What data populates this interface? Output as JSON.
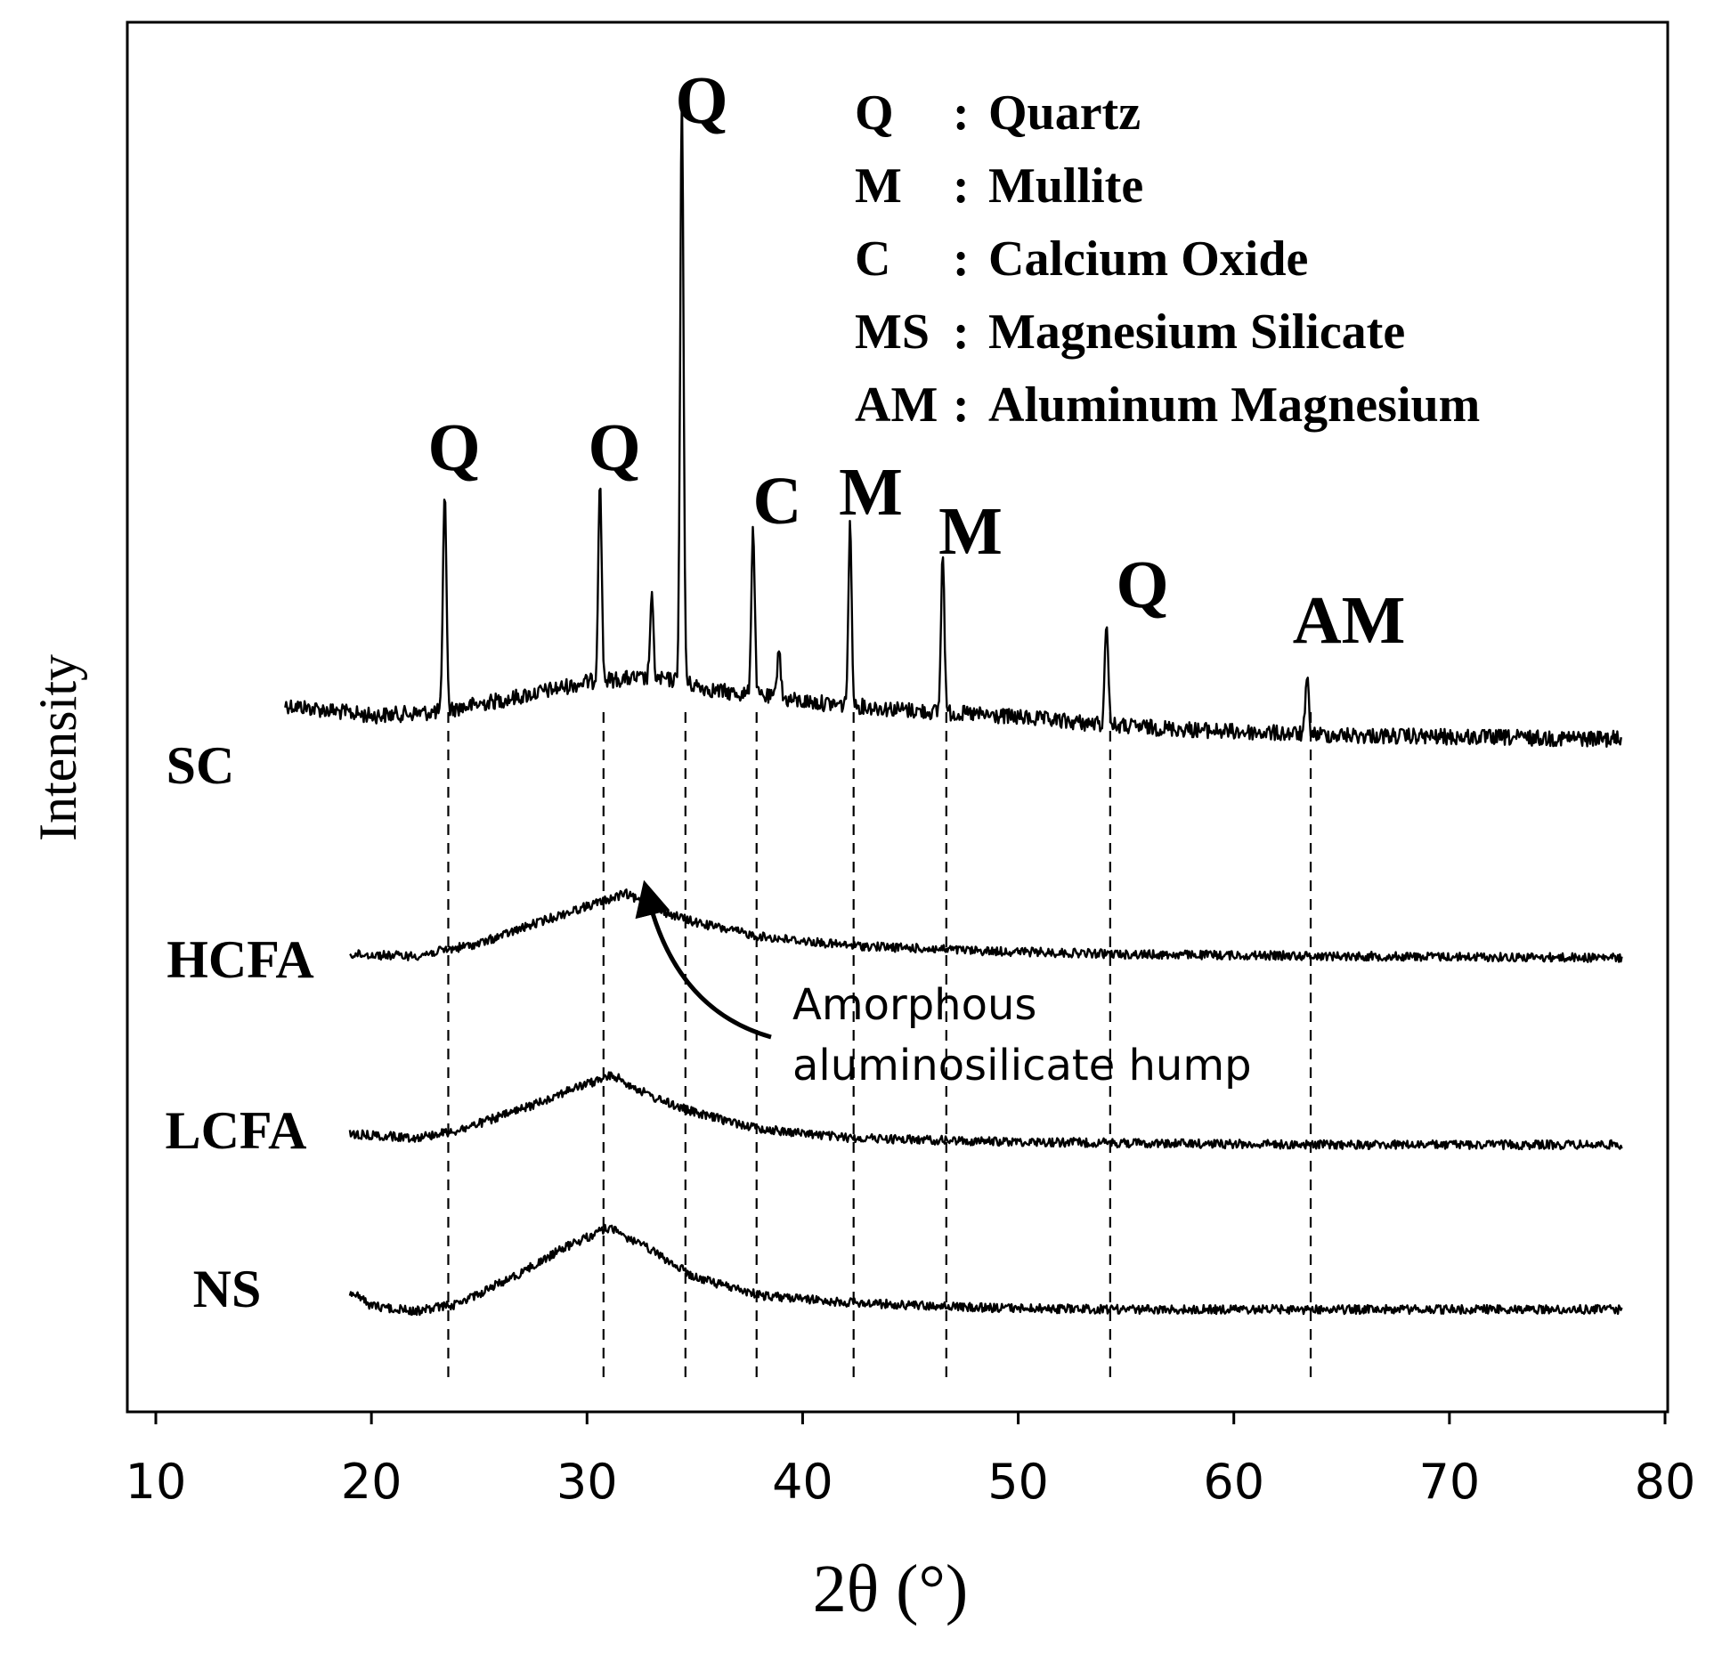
{
  "chart_data": {
    "type": "line",
    "title": "",
    "xlabel": "2θ (°)",
    "ylabel": "Intensity",
    "xlim": [
      10,
      80
    ],
    "x_ticks": [
      10,
      20,
      30,
      40,
      50,
      60,
      70,
      80
    ],
    "y_ticks": [],
    "grid": false,
    "legend": {
      "position": "top-right",
      "entries": [
        {
          "code": "Q",
          "phase": "Quartz"
        },
        {
          "code": "M",
          "phase": "Mullite"
        },
        {
          "code": "C",
          "phase": "Calcium Oxide"
        },
        {
          "code": "MS",
          "phase": "Magnesium Silicate"
        },
        {
          "code": "AM",
          "phase": "Aluminum Magnesium"
        }
      ]
    },
    "series": [
      {
        "name": "SC",
        "x_range": [
          16,
          78
        ],
        "baseline": [
          [
            16,
            0.58
          ],
          [
            20,
            0.46
          ],
          [
            23,
            0.5
          ],
          [
            27,
            0.68
          ],
          [
            30,
            0.84
          ],
          [
            32,
            0.88
          ],
          [
            34,
            0.86
          ],
          [
            36,
            0.74
          ],
          [
            40,
            0.62
          ],
          [
            45,
            0.52
          ],
          [
            50,
            0.44
          ],
          [
            55,
            0.34
          ],
          [
            60,
            0.28
          ],
          [
            65,
            0.24
          ],
          [
            70,
            0.22
          ],
          [
            78,
            0.2
          ]
        ],
        "peaks": [
          {
            "x": 23.4,
            "phase": "Q",
            "height": 2.5
          },
          {
            "x": 30.6,
            "phase": "Q",
            "height": 2.3
          },
          {
            "x": 33.0,
            "phase": "",
            "height": 0.9
          },
          {
            "x": 34.4,
            "phase": "Q",
            "height": 6.6
          },
          {
            "x": 37.7,
            "phase": "C",
            "height": 1.9
          },
          {
            "x": 38.9,
            "phase": "",
            "height": 0.6
          },
          {
            "x": 42.2,
            "phase": "M",
            "height": 2.0
          },
          {
            "x": 46.5,
            "phase": "M",
            "height": 1.8
          },
          {
            "x": 54.1,
            "phase": "Q",
            "height": 1.2
          },
          {
            "x": 63.4,
            "phase": "AM",
            "height": 0.6
          }
        ]
      },
      {
        "name": "HCFA",
        "x_range": [
          19,
          78
        ],
        "baseline": [
          [
            19,
            0.1
          ],
          [
            22,
            0.08
          ],
          [
            25,
            0.22
          ],
          [
            28,
            0.48
          ],
          [
            30,
            0.64
          ],
          [
            31.8,
            0.78
          ],
          [
            33,
            0.62
          ],
          [
            35,
            0.46
          ],
          [
            38,
            0.3
          ],
          [
            42,
            0.2
          ],
          [
            48,
            0.14
          ],
          [
            55,
            0.1
          ],
          [
            65,
            0.08
          ],
          [
            78,
            0.06
          ]
        ],
        "peaks": []
      },
      {
        "name": "LCFA",
        "x_range": [
          19,
          78
        ],
        "baseline": [
          [
            19,
            0.16
          ],
          [
            22,
            0.12
          ],
          [
            24,
            0.2
          ],
          [
            27,
            0.44
          ],
          [
            29,
            0.64
          ],
          [
            31.2,
            0.82
          ],
          [
            33,
            0.58
          ],
          [
            35,
            0.4
          ],
          [
            38,
            0.22
          ],
          [
            42,
            0.12
          ],
          [
            48,
            0.08
          ],
          [
            55,
            0.06
          ],
          [
            65,
            0.04
          ],
          [
            78,
            0.04
          ]
        ],
        "peaks": []
      },
      {
        "name": "NS",
        "x_range": [
          19,
          78
        ],
        "baseline": [
          [
            19,
            0.26
          ],
          [
            20,
            0.1
          ],
          [
            22,
            0.04
          ],
          [
            24,
            0.12
          ],
          [
            27,
            0.48
          ],
          [
            29,
            0.76
          ],
          [
            31,
            0.98
          ],
          [
            33,
            0.72
          ],
          [
            35,
            0.42
          ],
          [
            38,
            0.22
          ],
          [
            42,
            0.14
          ],
          [
            48,
            0.08
          ],
          [
            55,
            0.06
          ],
          [
            65,
            0.06
          ],
          [
            78,
            0.06
          ]
        ],
        "peaks": []
      }
    ],
    "reference_lines": [
      23.4,
      30.6,
      34.4,
      37.7,
      42.2,
      46.5,
      54.1,
      63.4
    ],
    "annotations": [
      {
        "text_lines": [
          "Amorphous",
          "aluminosilicate hump"
        ],
        "target_x": 31.8,
        "target_series": "HCFA"
      }
    ]
  }
}
